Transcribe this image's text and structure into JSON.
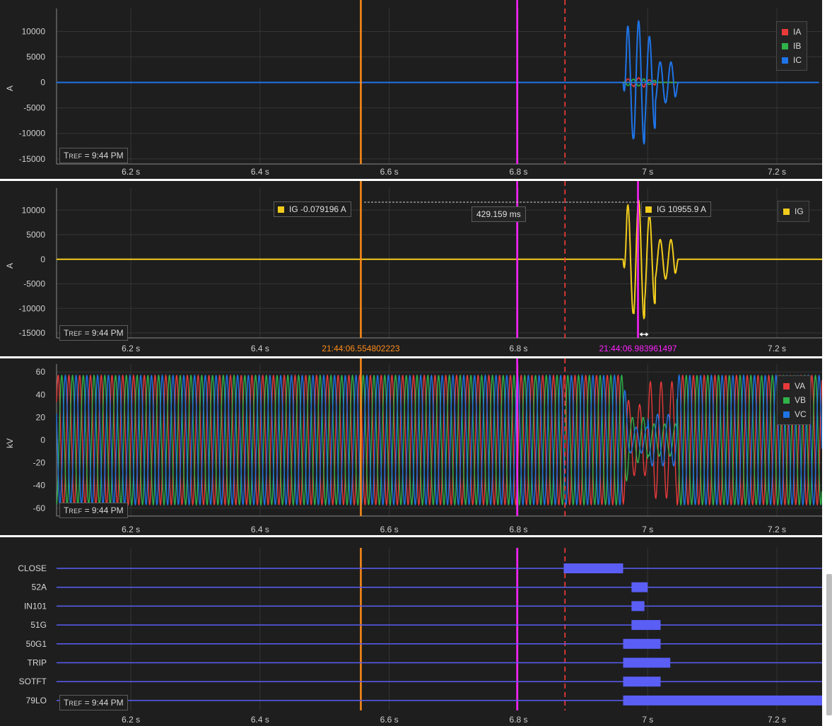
{
  "tref_label": {
    "prefix": "T",
    "sub": "REF",
    "rest": " = 9:44 PM"
  },
  "x_axis": {
    "range": [
      6.085,
      7.27
    ],
    "ticks": [
      6.2,
      6.4,
      6.6,
      6.8,
      7.0,
      7.2
    ],
    "tick_labels": [
      "6.2 s",
      "6.4 s",
      "6.6 s",
      "6.8 s",
      "7 s",
      "7.2 s"
    ]
  },
  "markers": {
    "orange_x": 6.556,
    "magenta_x": 6.798,
    "red_dashed_x": 6.872,
    "colors": {
      "orange": "#ff8c1a",
      "magenta": "#ff22ff",
      "red": "#ff3b3b"
    }
  },
  "panel_current": {
    "ylabel": "A",
    "ylim": [
      -16000,
      14500
    ],
    "yticks": [
      10000,
      5000,
      0,
      -5000,
      -10000,
      -15000
    ],
    "ytick_labels": [
      "10000",
      "5000",
      "0",
      "-5000",
      "-10000",
      "-15000"
    ],
    "legend": [
      {
        "label": "IA",
        "color": "#e83a3a"
      },
      {
        "label": "IB",
        "color": "#2fb34a"
      },
      {
        "label": "IC",
        "color": "#1e74e8"
      }
    ],
    "fault_window": [
      6.962,
      7.045
    ]
  },
  "panel_ground": {
    "ylabel": "A",
    "ylim": [
      -16000,
      14500
    ],
    "yticks": [
      10000,
      5000,
      0,
      -5000,
      -10000,
      -15000
    ],
    "ytick_labels": [
      "10000",
      "5000",
      "0",
      "-5000",
      "-10000",
      "-15000"
    ],
    "legend": [
      {
        "label": "IG",
        "color": "#f2cc1c"
      }
    ],
    "cursor_a_x": 6.556,
    "cursor_b_x": 6.985,
    "cursor_a_label": "IG  -0.079196 A",
    "cursor_b_label": "IG  10955.9 A",
    "delta_label": "429.159 ms",
    "time_a_label": "21:44:06.554802223",
    "time_b_label": "21:44:06.983961497"
  },
  "panel_voltage": {
    "ylabel": "kV",
    "ylim": [
      -67,
      67
    ],
    "yticks": [
      60,
      40,
      20,
      0,
      -20,
      -40,
      -60
    ],
    "ytick_labels": [
      "60",
      "40",
      "20",
      "0",
      "-20",
      "-40",
      "-60"
    ],
    "legend": [
      {
        "label": "VA",
        "color": "#e83a3a"
      },
      {
        "label": "VB",
        "color": "#2fb34a"
      },
      {
        "label": "VC",
        "color": "#1e74e8"
      }
    ],
    "amplitude": 57,
    "frequency_hz": 60
  },
  "panel_digital": {
    "line_color": "#5a5ef5",
    "channels": [
      {
        "label": "CLOSE",
        "on": [
          6.87,
          6.962
        ]
      },
      {
        "label": "52A",
        "on": [
          6.975,
          7.0
        ]
      },
      {
        "label": "IN101",
        "on": [
          6.975,
          6.995
        ]
      },
      {
        "label": "51G",
        "on": [
          6.975,
          7.02
        ]
      },
      {
        "label": "50G1",
        "on": [
          6.962,
          7.02
        ]
      },
      {
        "label": "TRIP",
        "on": [
          6.962,
          7.035
        ]
      },
      {
        "label": "SOTFT",
        "on": [
          6.962,
          7.02
        ]
      },
      {
        "label": "79LO",
        "on": [
          6.962,
          7.27
        ]
      }
    ]
  }
}
